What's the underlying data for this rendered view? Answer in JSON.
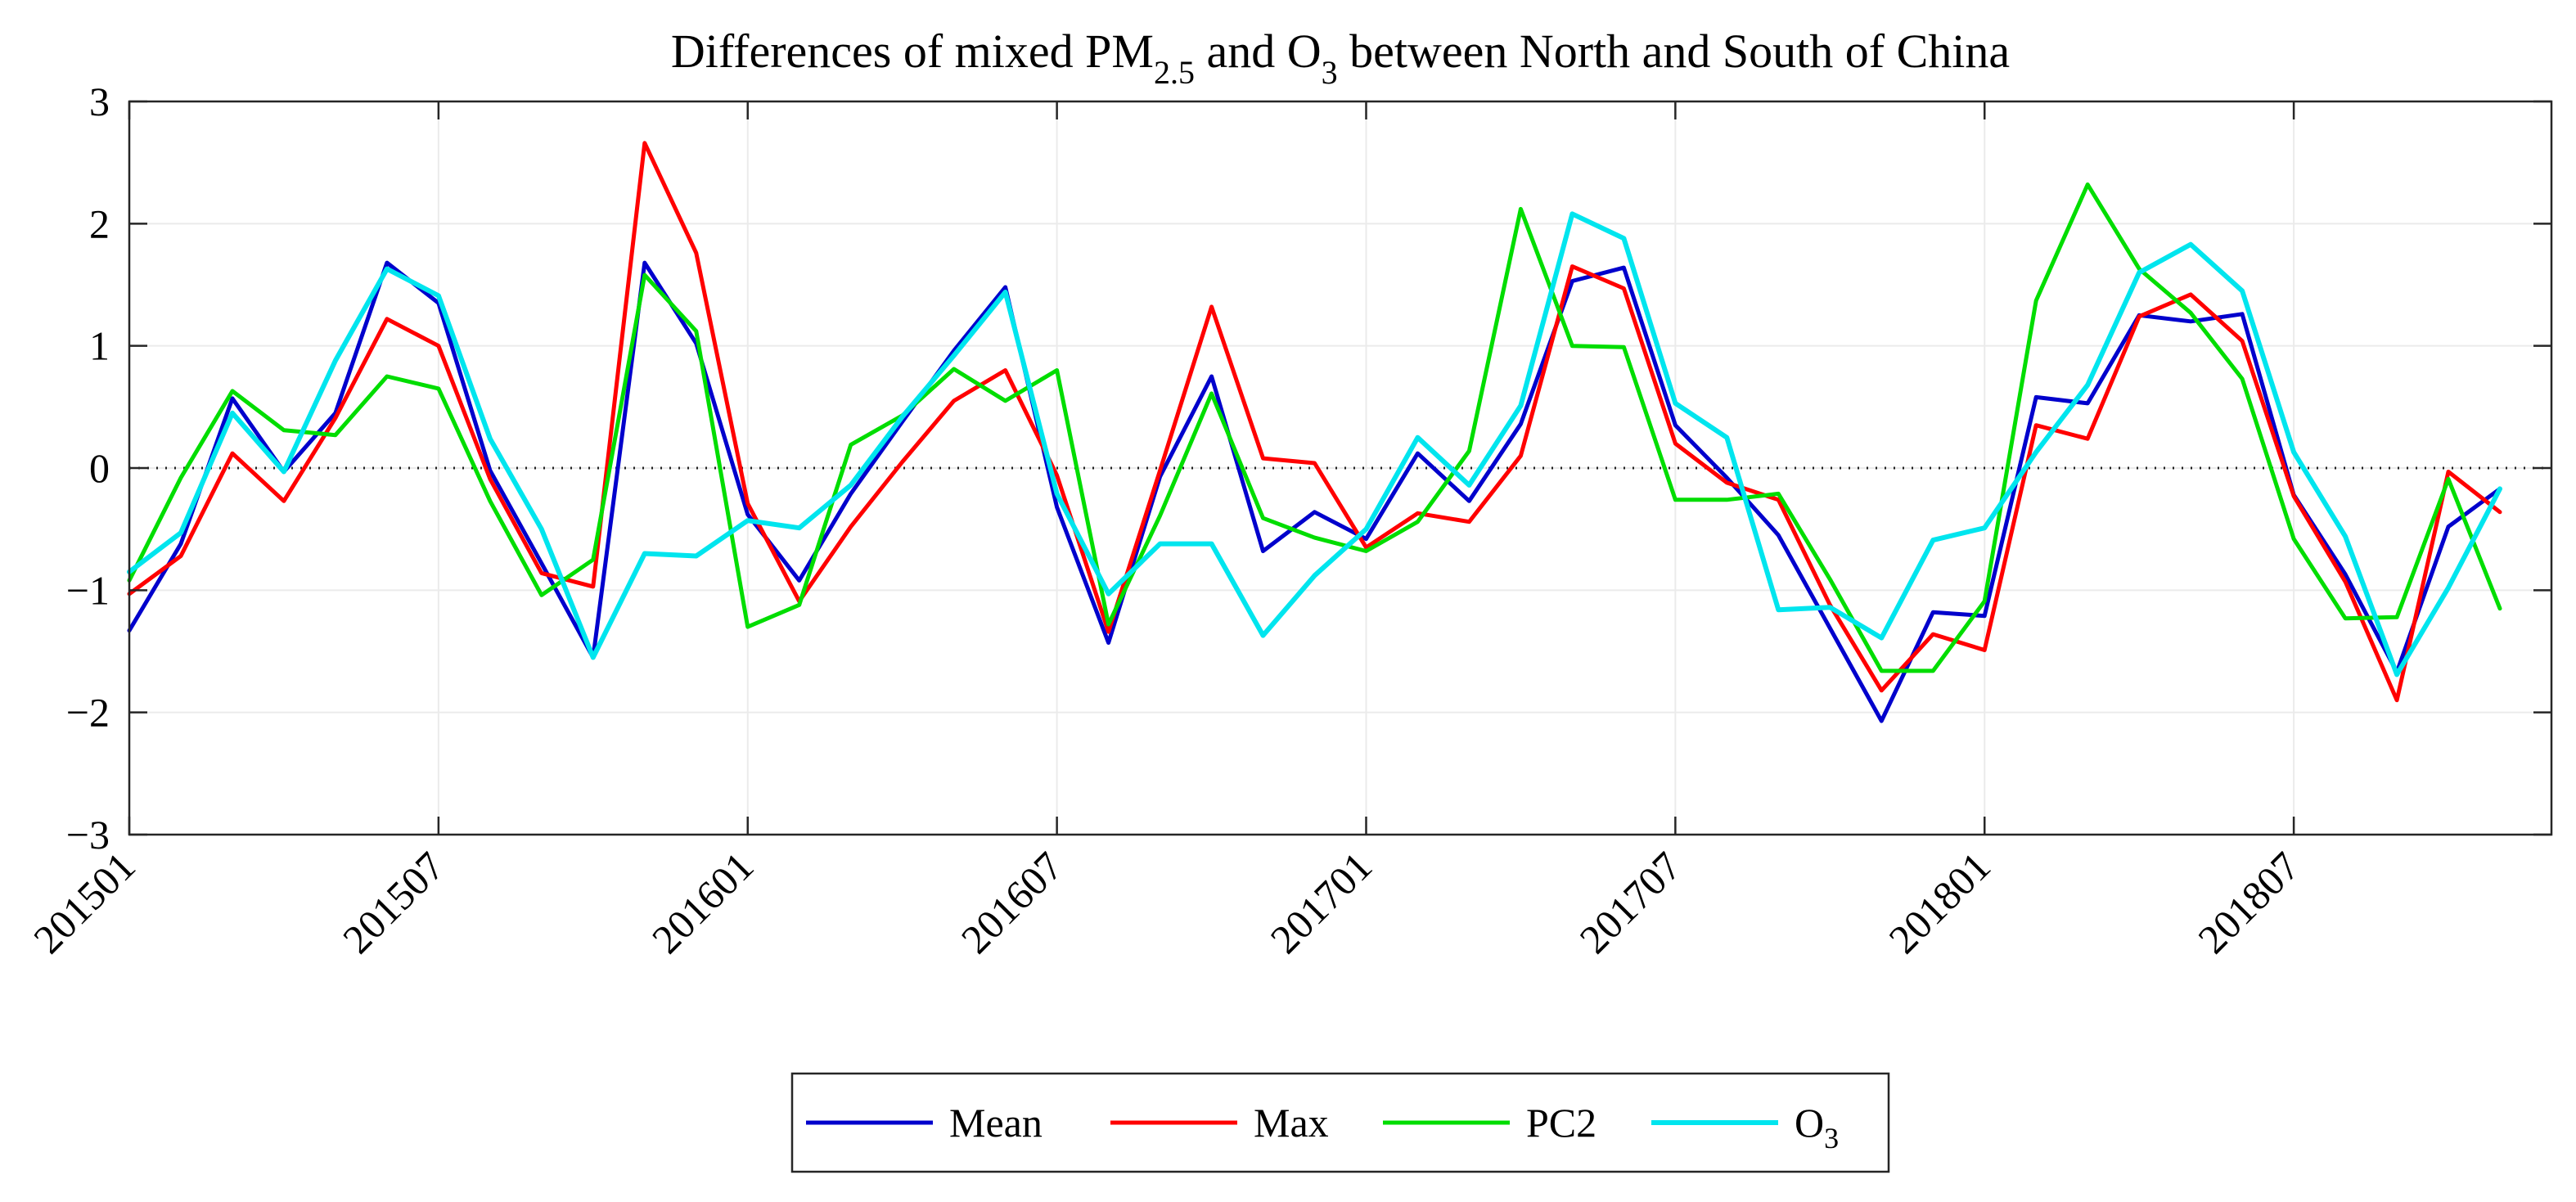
{
  "chart_data": {
    "type": "line",
    "title": {
      "prefix": "Differences of mixed PM",
      "prefix_sub": "2.5",
      "middle": " and O",
      "middle_sub": "3",
      "suffix": " between North and South of China"
    },
    "xlabel": "",
    "ylabel": "",
    "ylim": [
      -3,
      3
    ],
    "yticks": [
      -3,
      -2,
      -1,
      0,
      1,
      2,
      3
    ],
    "ytick_labels": [
      "−3",
      "−2",
      "−1",
      "0",
      "1",
      "2",
      "3"
    ],
    "xlim": [
      0,
      47
    ],
    "xticks": [
      0,
      6,
      12,
      18,
      24,
      30,
      36,
      42
    ],
    "xtick_labels": [
      "201501",
      "201507",
      "201601",
      "201607",
      "201701",
      "201707",
      "201801",
      "201807"
    ],
    "grid": true,
    "reference_line": {
      "y": 0,
      "style": "dotted"
    },
    "legend_position": "bottom-center",
    "series": [
      {
        "name": "Mean",
        "name_sub": "",
        "color": "#0000cc",
        "values": [
          -1.33,
          -0.62,
          0.57,
          -0.03,
          0.45,
          1.68,
          1.35,
          -0.02,
          -0.78,
          -1.55,
          1.68,
          1.02,
          -0.38,
          -0.92,
          -0.21,
          0.38,
          0.96,
          1.48,
          -0.32,
          -1.43,
          -0.07,
          0.75,
          -0.68,
          -0.36,
          -0.58,
          0.12,
          -0.27,
          0.36,
          1.53,
          1.64,
          0.35,
          -0.08,
          -0.55,
          -1.31,
          -2.07,
          -1.18,
          -1.21,
          0.58,
          0.53,
          1.25,
          1.2,
          1.26,
          -0.22,
          -0.87,
          -1.67,
          -0.48,
          -0.17
        ]
      },
      {
        "name": "Max",
        "name_sub": "",
        "color": "#ff0000",
        "values": [
          -1.03,
          -0.72,
          0.12,
          -0.27,
          0.41,
          1.22,
          1.0,
          -0.09,
          -0.86,
          -0.97,
          2.66,
          1.76,
          -0.29,
          -1.09,
          -0.48,
          0.05,
          0.55,
          0.8,
          -0.06,
          -1.34,
          -0.02,
          1.32,
          0.08,
          0.04,
          -0.65,
          -0.37,
          -0.44,
          0.1,
          1.65,
          1.47,
          0.2,
          -0.12,
          -0.26,
          -1.12,
          -1.82,
          -1.36,
          -1.49,
          0.35,
          0.24,
          1.24,
          1.42,
          1.04,
          -0.23,
          -0.93,
          -1.9,
          -0.03,
          -0.36
        ]
      },
      {
        "name": "PC2",
        "name_sub": "",
        "color": "#00dd00",
        "values": [
          -0.92,
          -0.08,
          0.63,
          0.31,
          0.27,
          0.75,
          0.65,
          -0.27,
          -1.04,
          -0.75,
          1.58,
          1.12,
          -1.3,
          -1.12,
          0.19,
          0.43,
          0.81,
          0.55,
          0.8,
          -1.28,
          -0.39,
          0.61,
          -0.41,
          -0.57,
          -0.68,
          -0.44,
          0.14,
          2.12,
          1.0,
          0.99,
          -0.26,
          -0.26,
          -0.21,
          -0.91,
          -1.66,
          -1.66,
          -1.09,
          1.37,
          2.32,
          1.63,
          1.27,
          0.73,
          -0.58,
          -1.23,
          -1.22,
          -0.09,
          -1.15
        ]
      },
      {
        "name": "O",
        "name_sub": "3",
        "color": "#00e5ee",
        "values": [
          -0.85,
          -0.53,
          0.45,
          -0.03,
          0.88,
          1.63,
          1.41,
          0.24,
          -0.5,
          -1.55,
          -0.7,
          -0.72,
          -0.43,
          -0.49,
          -0.14,
          0.42,
          0.92,
          1.44,
          -0.21,
          -1.03,
          -0.62,
          -0.62,
          -1.37,
          -0.88,
          -0.5,
          0.25,
          -0.14,
          0.51,
          2.08,
          1.88,
          0.53,
          0.25,
          -1.16,
          -1.14,
          -1.39,
          -0.59,
          -0.49,
          0.13,
          0.68,
          1.6,
          1.83,
          1.45,
          0.13,
          -0.56,
          -1.69,
          -0.98,
          -0.17
        ]
      }
    ]
  }
}
